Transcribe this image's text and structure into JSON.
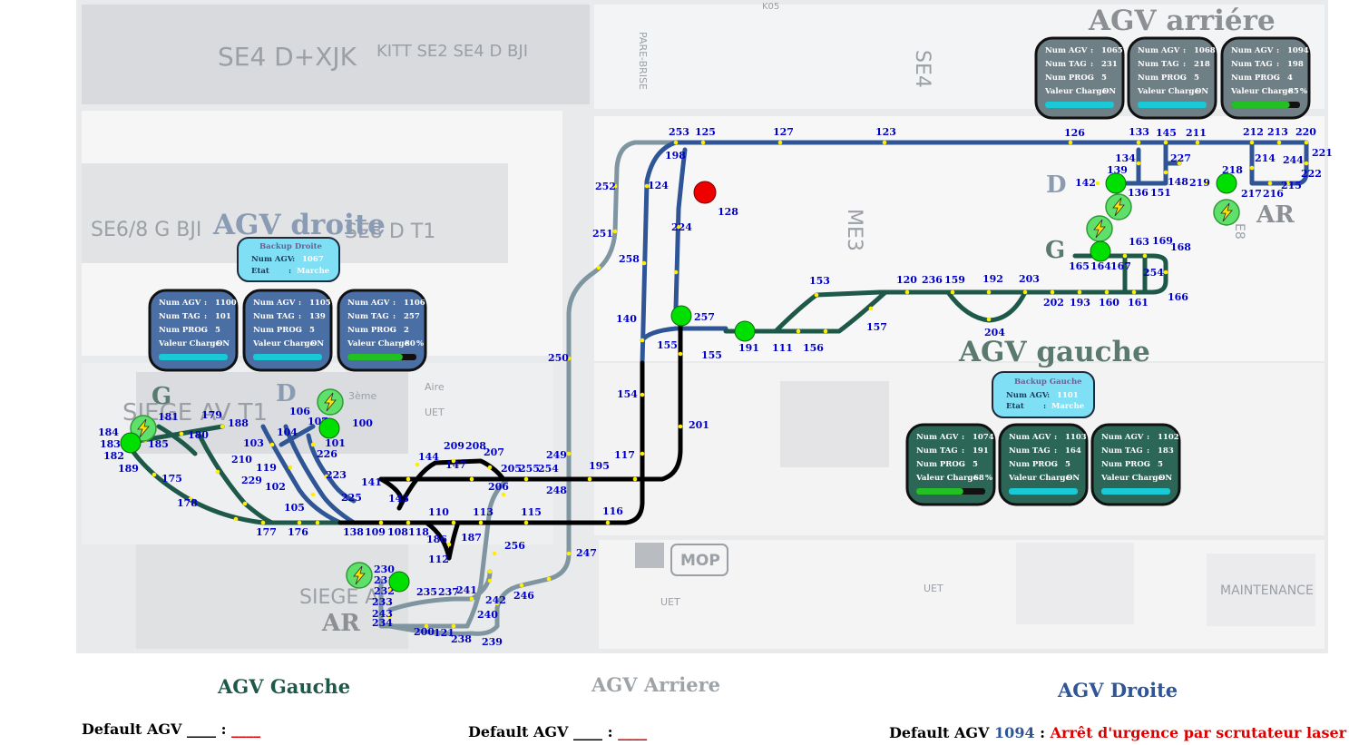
{
  "plan": {
    "zones": [
      "SE4 D+XJK",
      "KITT SE2 SE4 D BJI",
      "SE4",
      "SE6/8 G BJI",
      "SE8 D T1",
      "ME3",
      "SIEGE AV T1",
      "SIEGE A",
      "MOP",
      "MAINTENANCE",
      "UET",
      "UET",
      "UET",
      "K05",
      "PARE-BRISE",
      "3ème",
      "Aire",
      "E8"
    ]
  },
  "titles": {
    "agv_arriere": "AGV arriére",
    "agv_droite": "AGV droite",
    "agv_gauche": "AGV gauche"
  },
  "markers": {
    "g1": "G",
    "d1": "D",
    "g2": "G",
    "d2": "D",
    "ar1": "AR",
    "ar2": "AR"
  },
  "panel_labels": {
    "num_agv": "Num AGV",
    "num_tag": "Num TAG",
    "num_prog": "Num PROG",
    "valeur_charge": "Valeur Charge",
    "etat": "Etat"
  },
  "panels": {
    "arriere": [
      {
        "num_agv": "1065",
        "num_tag": "231",
        "num_prog": "5",
        "charge": "ON",
        "charge_pct": 0
      },
      {
        "num_agv": "1068",
        "num_tag": "218",
        "num_prog": "5",
        "charge": "ON",
        "charge_pct": 0
      },
      {
        "num_agv": "1094",
        "num_tag": "198",
        "num_prog": "4",
        "charge": "85",
        "unit": "%",
        "charge_pct": 85
      }
    ],
    "droite": [
      {
        "num_agv": "1100",
        "num_tag": "101",
        "num_prog": "5",
        "charge": "ON",
        "charge_pct": 0
      },
      {
        "num_agv": "1105",
        "num_tag": "139",
        "num_prog": "5",
        "charge": "ON",
        "charge_pct": 0
      },
      {
        "num_agv": "1106",
        "num_tag": "257",
        "num_prog": "2",
        "charge": "80",
        "unit": "%",
        "charge_pct": 80
      }
    ],
    "gauche": [
      {
        "num_agv": "1074",
        "num_tag": "191",
        "num_prog": "5",
        "charge": "68",
        "unit": "%",
        "charge_pct": 68
      },
      {
        "num_agv": "1103",
        "num_tag": "164",
        "num_prog": "5",
        "charge": "ON",
        "charge_pct": 0
      },
      {
        "num_agv": "1102",
        "num_tag": "183",
        "num_prog": "5",
        "charge": "ON",
        "charge_pct": 0
      }
    ]
  },
  "backup": {
    "droite": {
      "title": "Backup Droite",
      "num_agv": "1067",
      "etat": "Marche"
    },
    "gauche": {
      "title": "Backup Gauche",
      "num_agv": "1101",
      "etat": "Marche"
    }
  },
  "nodes": [
    {
      "id": "253"
    },
    {
      "id": "125"
    },
    {
      "id": "127"
    },
    {
      "id": "123"
    },
    {
      "id": "126"
    },
    {
      "id": "133"
    },
    {
      "id": "145"
    },
    {
      "id": "211"
    },
    {
      "id": "212"
    },
    {
      "id": "213"
    },
    {
      "id": "220"
    },
    {
      "id": "221"
    },
    {
      "id": "222"
    },
    {
      "id": "244"
    },
    {
      "id": "215"
    },
    {
      "id": "214"
    },
    {
      "id": "216"
    },
    {
      "id": "217"
    },
    {
      "id": "218"
    },
    {
      "id": "219"
    },
    {
      "id": "148"
    },
    {
      "id": "227"
    },
    {
      "id": "134"
    },
    {
      "id": "139"
    },
    {
      "id": "142"
    },
    {
      "id": "136"
    },
    {
      "id": "151"
    },
    {
      "id": "198"
    },
    {
      "id": "128"
    },
    {
      "id": "124"
    },
    {
      "id": "252"
    },
    {
      "id": "224"
    },
    {
      "id": "251"
    },
    {
      "id": "258"
    },
    {
      "id": "140"
    },
    {
      "id": "257"
    },
    {
      "id": "155"
    },
    {
      "id": "155"
    },
    {
      "id": "191"
    },
    {
      "id": "111"
    },
    {
      "id": "156"
    },
    {
      "id": "157"
    },
    {
      "id": "153"
    },
    {
      "id": "120"
    },
    {
      "id": "236"
    },
    {
      "id": "159"
    },
    {
      "id": "192"
    },
    {
      "id": "203"
    },
    {
      "id": "204"
    },
    {
      "id": "202"
    },
    {
      "id": "193"
    },
    {
      "id": "160"
    },
    {
      "id": "161"
    },
    {
      "id": "166"
    },
    {
      "id": "254"
    },
    {
      "id": "168"
    },
    {
      "id": "169"
    },
    {
      "id": "163"
    },
    {
      "id": "165"
    },
    {
      "id": "164"
    },
    {
      "id": "167"
    },
    {
      "id": "250"
    },
    {
      "id": "154"
    },
    {
      "id": "201"
    },
    {
      "id": "117"
    },
    {
      "id": "195"
    },
    {
      "id": "249"
    },
    {
      "id": "248"
    },
    {
      "id": "116"
    },
    {
      "id": "247"
    },
    {
      "id": "246"
    },
    {
      "id": "115"
    },
    {
      "id": "113"
    },
    {
      "id": "110"
    },
    {
      "id": "256"
    },
    {
      "id": "186"
    },
    {
      "id": "187"
    },
    {
      "id": "112"
    },
    {
      "id": "209"
    },
    {
      "id": "208"
    },
    {
      "id": "207"
    },
    {
      "id": "147"
    },
    {
      "id": "144"
    },
    {
      "id": "205"
    },
    {
      "id": "255"
    },
    {
      "id": "254"
    },
    {
      "id": "206"
    },
    {
      "id": "141"
    },
    {
      "id": "143"
    },
    {
      "id": "138"
    },
    {
      "id": "109"
    },
    {
      "id": "108"
    },
    {
      "id": "118"
    },
    {
      "id": "176"
    },
    {
      "id": "177"
    },
    {
      "id": "178"
    },
    {
      "id": "175"
    },
    {
      "id": "184"
    },
    {
      "id": "183"
    },
    {
      "id": "182"
    },
    {
      "id": "189"
    },
    {
      "id": "185"
    },
    {
      "id": "181"
    },
    {
      "id": "180"
    },
    {
      "id": "179"
    },
    {
      "id": "188"
    },
    {
      "id": "210"
    },
    {
      "id": "229"
    },
    {
      "id": "103"
    },
    {
      "id": "119"
    },
    {
      "id": "102"
    },
    {
      "id": "105"
    },
    {
      "id": "104"
    },
    {
      "id": "106"
    },
    {
      "id": "107"
    },
    {
      "id": "100"
    },
    {
      "id": "101"
    },
    {
      "id": "226"
    },
    {
      "id": "223"
    },
    {
      "id": "225"
    },
    {
      "id": "230"
    },
    {
      "id": "231"
    },
    {
      "id": "232"
    },
    {
      "id": "233"
    },
    {
      "id": "243"
    },
    {
      "id": "234"
    },
    {
      "id": "235"
    },
    {
      "id": "237"
    },
    {
      "id": "241"
    },
    {
      "id": "242"
    },
    {
      "id": "240"
    },
    {
      "id": "200"
    },
    {
      "id": "121"
    },
    {
      "id": "238"
    },
    {
      "id": "239"
    }
  ],
  "footer": {
    "agv_gauche": "AGV Gauche",
    "agv_arriere": "AGV Arriere",
    "agv_droite": "AGV Droite",
    "default_label": "Default AGV",
    "blank": "____",
    "sep": ":",
    "default_num_3": "1094",
    "message_3": "Arrêt d'urgence par scrutateur laser SICK"
  },
  "colors": {
    "track_blue": "#2f5597",
    "track_green": "#1d5848",
    "track_grey": "#7f95a0",
    "track_black": "#000000",
    "panel_blue": "#4a6fa5",
    "panel_green": "#2b6656",
    "panel_grey": "#6f7f86",
    "backup_cyan": "#7fe0f5",
    "agv_green": "#00e000",
    "agv_red": "#ee0000",
    "alarm_red": "#dd0000"
  }
}
